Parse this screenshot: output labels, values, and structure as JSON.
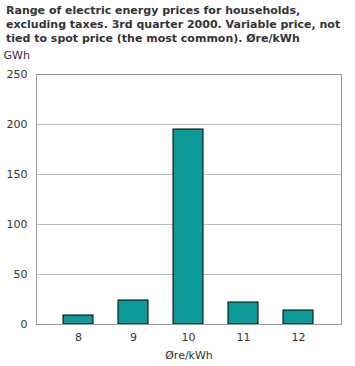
{
  "chart_data": {
    "type": "bar",
    "title": "Range of electric energy prices for households, excluding taxes. 3rd quarter 2000. Variable price, not tied to spot price (the most common). Øre/kWh",
    "x_label": "Øre/kWh",
    "y_label": "GWh",
    "categories": [
      8,
      9,
      10,
      11,
      12
    ],
    "values": [
      9,
      24,
      195,
      22,
      14
    ],
    "color": "#0f9a9a",
    "ylim": [
      0,
      250
    ],
    "yticks": [
      0,
      50,
      100,
      150,
      200,
      250
    ],
    "grid": true
  }
}
